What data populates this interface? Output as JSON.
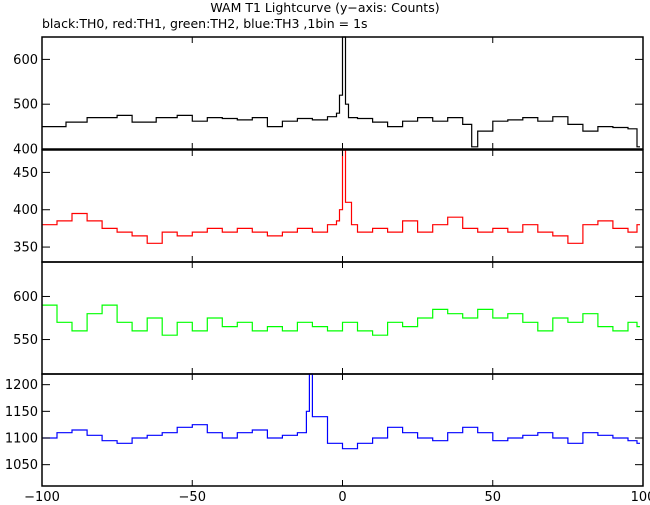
{
  "chart_data": {
    "type": "line",
    "title": "WAM T1 Lightcurve (y−axis: Counts)",
    "subtitle": "black:TH0, red:TH1, green:TH2, blue:TH3 ,1bin = 1s",
    "x_range": [
      -100,
      100
    ],
    "x_ticks": [
      -100,
      -50,
      0,
      50,
      100
    ],
    "x_tick_labels": [
      "−100",
      "−50",
      "0",
      "50",
      "100"
    ],
    "grid": false,
    "panels": [
      {
        "name": "TH0",
        "color": "#000000",
        "ylim": [
          400,
          650
        ],
        "y_ticks": [
          400,
          500,
          600
        ],
        "y_tick_labels": [
          "400",
          "500",
          "600"
        ],
        "points": [
          [
            -100,
            450
          ],
          [
            -92,
            460
          ],
          [
            -85,
            470
          ],
          [
            -80,
            470
          ],
          [
            -75,
            475
          ],
          [
            -70,
            460
          ],
          [
            -62,
            470
          ],
          [
            -55,
            475
          ],
          [
            -50,
            462
          ],
          [
            -45,
            470
          ],
          [
            -40,
            468
          ],
          [
            -35,
            465
          ],
          [
            -30,
            470
          ],
          [
            -25,
            450
          ],
          [
            -20,
            462
          ],
          [
            -15,
            468
          ],
          [
            -10,
            465
          ],
          [
            -5,
            472
          ],
          [
            -2,
            480
          ],
          [
            -1,
            520
          ],
          [
            0,
            650
          ],
          [
            1,
            500
          ],
          [
            2,
            470
          ],
          [
            5,
            468
          ],
          [
            10,
            460
          ],
          [
            15,
            450
          ],
          [
            20,
            462
          ],
          [
            25,
            470
          ],
          [
            30,
            462
          ],
          [
            35,
            470
          ],
          [
            40,
            455
          ],
          [
            43,
            405
          ],
          [
            45,
            440
          ],
          [
            50,
            462
          ],
          [
            55,
            465
          ],
          [
            60,
            470
          ],
          [
            65,
            462
          ],
          [
            70,
            472
          ],
          [
            75,
            455
          ],
          [
            80,
            440
          ],
          [
            85,
            450
          ],
          [
            90,
            448
          ],
          [
            95,
            445
          ],
          [
            98,
            405
          ]
        ]
      },
      {
        "name": "TH1",
        "color": "#ff0000",
        "ylim": [
          330,
          480
        ],
        "y_ticks": [
          350,
          400,
          450
        ],
        "y_tick_labels": [
          "350",
          "400",
          "450"
        ],
        "points": [
          [
            -100,
            380
          ],
          [
            -95,
            385
          ],
          [
            -90,
            395
          ],
          [
            -85,
            385
          ],
          [
            -80,
            375
          ],
          [
            -75,
            370
          ],
          [
            -70,
            365
          ],
          [
            -65,
            355
          ],
          [
            -60,
            370
          ],
          [
            -55,
            365
          ],
          [
            -50,
            370
          ],
          [
            -45,
            375
          ],
          [
            -40,
            370
          ],
          [
            -35,
            375
          ],
          [
            -30,
            370
          ],
          [
            -25,
            365
          ],
          [
            -20,
            370
          ],
          [
            -15,
            375
          ],
          [
            -10,
            370
          ],
          [
            -5,
            380
          ],
          [
            -2,
            385
          ],
          [
            -1,
            400
          ],
          [
            0,
            480
          ],
          [
            1,
            410
          ],
          [
            3,
            380
          ],
          [
            5,
            370
          ],
          [
            10,
            375
          ],
          [
            15,
            370
          ],
          [
            20,
            385
          ],
          [
            25,
            370
          ],
          [
            30,
            380
          ],
          [
            35,
            390
          ],
          [
            40,
            375
          ],
          [
            45,
            370
          ],
          [
            50,
            375
          ],
          [
            55,
            370
          ],
          [
            60,
            380
          ],
          [
            65,
            370
          ],
          [
            70,
            365
          ],
          [
            75,
            355
          ],
          [
            80,
            380
          ],
          [
            85,
            385
          ],
          [
            90,
            375
          ],
          [
            95,
            370
          ],
          [
            98,
            380
          ]
        ]
      },
      {
        "name": "TH2",
        "color": "#00ff00",
        "ylim": [
          510,
          640
        ],
        "y_ticks": [
          550,
          600
        ],
        "y_tick_labels": [
          "550",
          "600"
        ],
        "points": [
          [
            -100,
            590
          ],
          [
            -95,
            570
          ],
          [
            -90,
            560
          ],
          [
            -85,
            580
          ],
          [
            -80,
            590
          ],
          [
            -75,
            570
          ],
          [
            -70,
            560
          ],
          [
            -65,
            575
          ],
          [
            -60,
            555
          ],
          [
            -55,
            570
          ],
          [
            -50,
            560
          ],
          [
            -45,
            575
          ],
          [
            -40,
            565
          ],
          [
            -35,
            570
          ],
          [
            -30,
            560
          ],
          [
            -25,
            565
          ],
          [
            -20,
            560
          ],
          [
            -15,
            570
          ],
          [
            -10,
            565
          ],
          [
            -5,
            560
          ],
          [
            0,
            570
          ],
          [
            5,
            560
          ],
          [
            10,
            555
          ],
          [
            15,
            570
          ],
          [
            20,
            565
          ],
          [
            25,
            575
          ],
          [
            30,
            585
          ],
          [
            35,
            580
          ],
          [
            40,
            575
          ],
          [
            45,
            585
          ],
          [
            50,
            575
          ],
          [
            55,
            580
          ],
          [
            60,
            570
          ],
          [
            65,
            560
          ],
          [
            70,
            575
          ],
          [
            75,
            570
          ],
          [
            80,
            580
          ],
          [
            85,
            565
          ],
          [
            90,
            560
          ],
          [
            95,
            570
          ],
          [
            98,
            565
          ]
        ]
      },
      {
        "name": "TH3",
        "color": "#0000ff",
        "ylim": [
          1010,
          1220
        ],
        "y_ticks": [
          1050,
          1100,
          1150,
          1200
        ],
        "y_tick_labels": [
          "1050",
          "1100",
          "1150",
          "1200"
        ],
        "points": [
          [
            -100,
            1100
          ],
          [
            -95,
            1110
          ],
          [
            -90,
            1115
          ],
          [
            -85,
            1105
          ],
          [
            -80,
            1095
          ],
          [
            -75,
            1090
          ],
          [
            -70,
            1100
          ],
          [
            -65,
            1105
          ],
          [
            -60,
            1110
          ],
          [
            -55,
            1120
          ],
          [
            -50,
            1125
          ],
          [
            -45,
            1110
          ],
          [
            -40,
            1100
          ],
          [
            -35,
            1110
          ],
          [
            -30,
            1115
          ],
          [
            -25,
            1100
          ],
          [
            -20,
            1105
          ],
          [
            -15,
            1110
          ],
          [
            -12,
            1150
          ],
          [
            -11,
            1220
          ],
          [
            -10,
            1140
          ],
          [
            -5,
            1090
          ],
          [
            0,
            1080
          ],
          [
            5,
            1090
          ],
          [
            10,
            1100
          ],
          [
            15,
            1120
          ],
          [
            20,
            1110
          ],
          [
            25,
            1100
          ],
          [
            30,
            1095
          ],
          [
            35,
            1110
          ],
          [
            40,
            1120
          ],
          [
            45,
            1110
          ],
          [
            50,
            1095
          ],
          [
            55,
            1100
          ],
          [
            60,
            1105
          ],
          [
            65,
            1110
          ],
          [
            70,
            1100
          ],
          [
            75,
            1090
          ],
          [
            80,
            1110
          ],
          [
            85,
            1105
          ],
          [
            90,
            1100
          ],
          [
            95,
            1095
          ],
          [
            98,
            1090
          ]
        ]
      }
    ]
  }
}
